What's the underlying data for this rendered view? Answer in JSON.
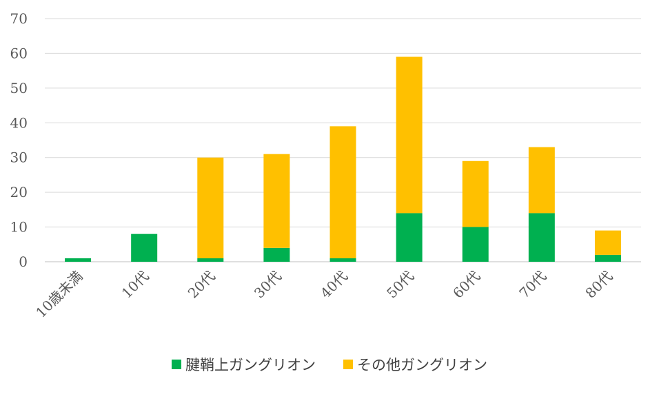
{
  "chart_data": {
    "type": "bar",
    "stacked": true,
    "categories": [
      "10歳未満",
      "10代",
      "20代",
      "30代",
      "40代",
      "50代",
      "60代",
      "70代",
      "80代"
    ],
    "series": [
      {
        "name": "腱鞘上ガングリオン",
        "color": "#00b050",
        "values": [
          1,
          8,
          1,
          4,
          1,
          14,
          10,
          14,
          2
        ]
      },
      {
        "name": "その他ガングリオン",
        "color": "#ffc000",
        "values": [
          0,
          0,
          29,
          27,
          38,
          45,
          19,
          19,
          7
        ]
      }
    ],
    "ylim": [
      0,
      70
    ],
    "yticks": [
      "0",
      "10",
      "20",
      "30",
      "40",
      "50",
      "60",
      "70"
    ],
    "grid": true,
    "legend_position": "bottom"
  }
}
